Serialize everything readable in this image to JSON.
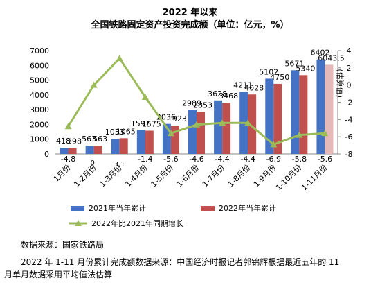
{
  "chart_data": {
    "type": "bar",
    "title": "2022 年以来",
    "subtitle": "全国铁路固定资产投资完成额（单位：亿元，%）",
    "categories": [
      "1月份",
      "1-2月份",
      "1-3月份",
      "1-4月份",
      "1-5月份",
      "1-6月份",
      "1-7月份",
      "1-8月份",
      "1-9月份",
      "1-10月份",
      "1-11月份"
    ],
    "series": [
      {
        "name": "2021年当年累计",
        "color": "#4472C4",
        "values": [
          418,
          563,
          1033,
          1597,
          2036,
          2989,
          3628,
          4211,
          5102,
          5671,
          6402
        ],
        "labels": [
          "418",
          "563",
          "1033",
          "1597",
          "2036",
          "2989",
          "3628",
          "4211",
          "5102",
          "5671",
          "6402"
        ]
      },
      {
        "name": "2022年当年累计",
        "color": "#C0504D",
        "highlight_color": "#E6B9B8",
        "values": [
          398,
          563,
          1065,
          1575,
          1923,
          2853,
          3468,
          4028,
          4750,
          5340,
          6043.5
        ],
        "labels": [
          "398",
          "563",
          "1065",
          "1575",
          "1923",
          "2853",
          "3468",
          "4028",
          "4750",
          "5340",
          "6043.5"
        ]
      },
      {
        "name": "2022年比2021年同期增长",
        "color": "#9BBB59",
        "type": "line",
        "axis": "right",
        "values": [
          -4.8,
          0,
          3.1,
          -1.4,
          -5.6,
          -4.6,
          -4.4,
          -4.4,
          -6.9,
          -5.8,
          -5.6
        ],
        "labels": [
          "-4.8",
          "0",
          "3.1",
          "-1.4",
          "-5.6",
          "-4.6",
          "-4.4",
          "-4.4",
          "-6.9",
          "-5.8",
          "-5.6"
        ]
      }
    ],
    "annotation": "(估算值)",
    "y_left": {
      "min": 0,
      "max": 7000,
      "ticks": [
        "0",
        "1000",
        "2000",
        "3000",
        "4000",
        "5000",
        "6000",
        "7000"
      ]
    },
    "y_right": {
      "min": -8,
      "max": 4,
      "ticks": [
        "-8",
        "-6",
        "-4",
        "-2",
        "0",
        "2",
        "4"
      ]
    },
    "grid": false,
    "legend": "bottom"
  },
  "source": {
    "line1": "数据来源：国家铁路局",
    "line2": "2022 年 1-11 月份累计完成额数据来源：中国经济时报记者郭锦辉根据最近五年的 11",
    "line3": "月单月数据采用平均值法估算"
  }
}
